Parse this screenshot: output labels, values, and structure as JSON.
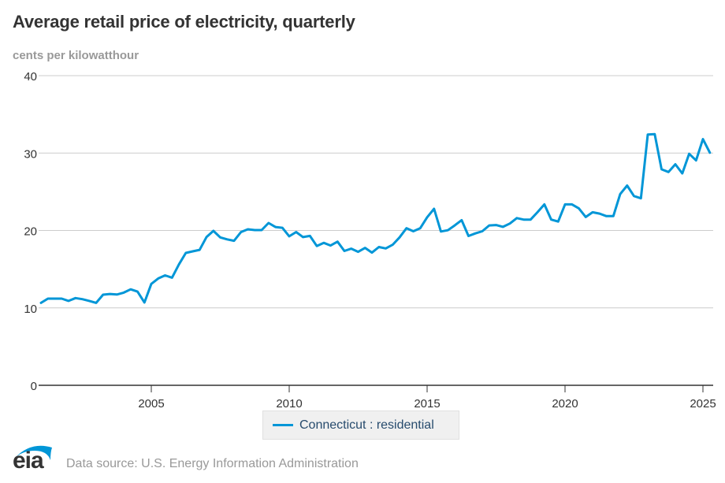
{
  "header": {
    "title": "Average retail price of electricity, quarterly",
    "units": "cents per kilowatthour"
  },
  "legend": {
    "series_label": "Connecticut : residential"
  },
  "footer": {
    "logo_text": "eia",
    "source": "Data source: U.S. Energy Information Administration"
  },
  "colors": {
    "series": "#0096d7",
    "grid": "#cccccc",
    "axis": "#333333",
    "logo_arc": "#0096d7"
  },
  "chart_data": {
    "type": "line",
    "title": "Average retail price of electricity, quarterly",
    "ylabel": "cents per kilowatthour",
    "xlabel": "",
    "ylim": [
      0,
      40
    ],
    "yticks": [
      0,
      10,
      20,
      30,
      40
    ],
    "xlim": [
      2001.0,
      2025.45
    ],
    "xticks": [
      2005,
      2010,
      2015,
      2020,
      2025
    ],
    "grid": true,
    "legend_position": "bottom-center",
    "x_start": "2001 Q1",
    "x_frequency": "quarterly",
    "series": [
      {
        "name": "Connecticut : residential",
        "values": [
          10.65,
          11.2,
          11.2,
          11.2,
          10.9,
          11.27,
          11.12,
          10.9,
          10.65,
          11.7,
          11.8,
          11.73,
          11.97,
          12.4,
          12.1,
          10.7,
          13.1,
          13.8,
          14.2,
          13.9,
          15.6,
          17.1,
          17.3,
          17.5,
          19.15,
          19.95,
          19.1,
          18.85,
          18.67,
          19.8,
          20.15,
          20.05,
          20.05,
          20.97,
          20.45,
          20.35,
          19.25,
          19.8,
          19.15,
          19.3,
          17.99,
          18.4,
          18.06,
          18.55,
          17.35,
          17.65,
          17.24,
          17.75,
          17.14,
          17.86,
          17.68,
          18.16,
          19.1,
          20.3,
          19.9,
          20.3,
          21.7,
          22.8,
          19.87,
          20.03,
          20.65,
          21.33,
          19.29,
          19.62,
          19.9,
          20.65,
          20.7,
          20.47,
          20.9,
          21.6,
          21.4,
          21.4,
          22.35,
          23.37,
          21.4,
          21.15,
          23.37,
          23.37,
          22.86,
          21.74,
          22.35,
          22.18,
          21.85,
          21.85,
          24.7,
          25.8,
          24.45,
          24.15,
          32.4,
          32.45,
          27.9,
          27.55,
          28.55,
          27.37,
          29.9,
          29.05,
          31.8,
          30.05
        ]
      }
    ]
  }
}
